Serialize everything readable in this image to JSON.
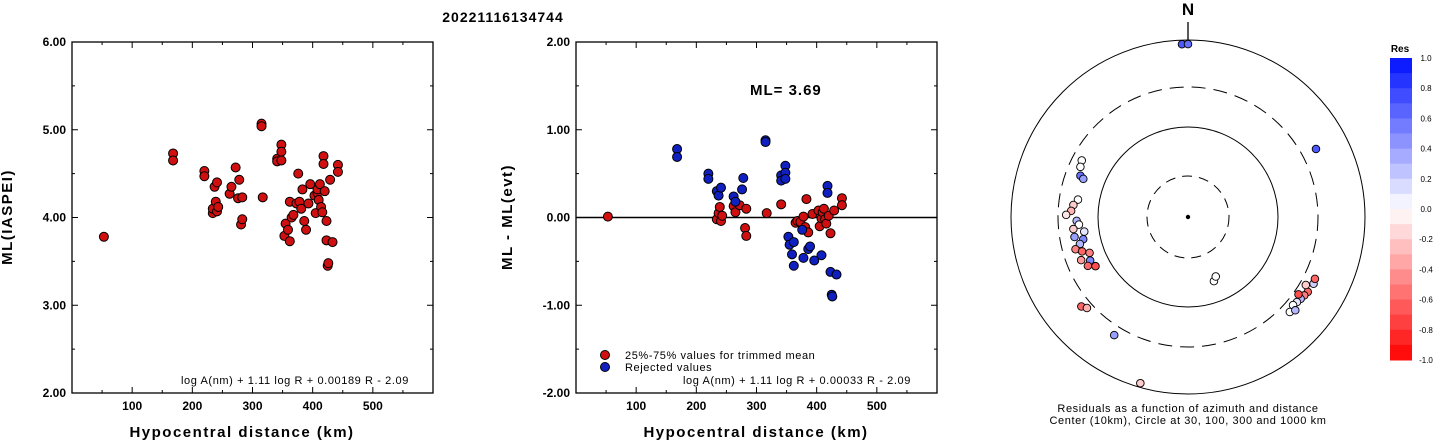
{
  "event_id": "20221116134744",
  "chart_data": [
    {
      "type": "scatter",
      "xlabel": "Hypocentral distance (km)",
      "ylabel": "ML(IASPEI)",
      "xlim": [
        0,
        600
      ],
      "ylim": [
        2.0,
        6.0
      ],
      "xticks": [
        "100",
        "200",
        "300",
        "400",
        "500"
      ],
      "yticks": [
        "2.00",
        "3.00",
        "4.00",
        "5.00",
        "6.00"
      ],
      "formula": "log A(nm) + 1.11 log R + 0.00189 R - 2.09",
      "marker_color": "#d01010",
      "points": [
        [
          53,
          3.78
        ],
        [
          168,
          4.73
        ],
        [
          168,
          4.65
        ],
        [
          220,
          4.53
        ],
        [
          220,
          4.47
        ],
        [
          234,
          4.05
        ],
        [
          234,
          4.1
        ],
        [
          237,
          4.35
        ],
        [
          239,
          4.18
        ],
        [
          241,
          4.07
        ],
        [
          241,
          4.4
        ],
        [
          243,
          4.12
        ],
        [
          262,
          4.27
        ],
        [
          265,
          4.35
        ],
        [
          272,
          4.57
        ],
        [
          276,
          4.22
        ],
        [
          278,
          4.43
        ],
        [
          281,
          3.92
        ],
        [
          283,
          3.98
        ],
        [
          283,
          4.23
        ],
        [
          315,
          5.07
        ],
        [
          315,
          5.04
        ],
        [
          317,
          4.23
        ],
        [
          341,
          4.67
        ],
        [
          341,
          4.64
        ],
        [
          348,
          4.83
        ],
        [
          348,
          4.75
        ],
        [
          348,
          4.65
        ],
        [
          353,
          3.79
        ],
        [
          355,
          3.93
        ],
        [
          359,
          3.86
        ],
        [
          362,
          4.18
        ],
        [
          362,
          3.73
        ],
        [
          365,
          4.0
        ],
        [
          368,
          4.03
        ],
        [
          373,
          4.16
        ],
        [
          376,
          4.5
        ],
        [
          378,
          4.18
        ],
        [
          381,
          4.1
        ],
        [
          383,
          4.32
        ],
        [
          386,
          3.96
        ],
        [
          389,
          3.86
        ],
        [
          393,
          4.16
        ],
        [
          396,
          4.38
        ],
        [
          403,
          4.25
        ],
        [
          405,
          4.05
        ],
        [
          408,
          4.28
        ],
        [
          408,
          4.32
        ],
        [
          410,
          4.2
        ],
        [
          412,
          4.38
        ],
        [
          414,
          4.12
        ],
        [
          416,
          4.06
        ],
        [
          418,
          4.7
        ],
        [
          418,
          4.61
        ],
        [
          420,
          4.3
        ],
        [
          423,
          3.96
        ],
        [
          423,
          3.74
        ],
        [
          425,
          3.45
        ],
        [
          426,
          3.48
        ],
        [
          429,
          4.43
        ],
        [
          433,
          3.72
        ],
        [
          442,
          4.6
        ],
        [
          442,
          4.52
        ]
      ]
    },
    {
      "type": "scatter",
      "xlabel": "Hypocentral distance (km)",
      "ylabel": "ML - ML(evt)",
      "xlim": [
        0,
        600
      ],
      "ylim": [
        -2.0,
        2.0
      ],
      "xticks": [
        "100",
        "200",
        "300",
        "400",
        "500"
      ],
      "yticks": [
        "-2.00",
        "-1.00",
        "0.00",
        "1.00",
        "2.00"
      ],
      "annotation": "ML= 3.69",
      "formula": "log A(nm) + 1.11 log R + 0.00033 R - 2.09",
      "zero_line": true,
      "series": [
        {
          "name": "25%-75% values for trimmed mean",
          "color": "#d01010",
          "points": [
            [
              53,
              0.01
            ],
            [
              234,
              -0.02
            ],
            [
              237,
              0.05
            ],
            [
              239,
              0.12
            ],
            [
              241,
              -0.04
            ],
            [
              243,
              0.02
            ],
            [
              262,
              0.13
            ],
            [
              265,
              0.06
            ],
            [
              272,
              0.14
            ],
            [
              281,
              -0.12
            ],
            [
              283,
              -0.21
            ],
            [
              283,
              0.1
            ],
            [
              317,
              0.05
            ],
            [
              341,
              0.15
            ],
            [
              365,
              -0.06
            ],
            [
              368,
              -0.04
            ],
            [
              373,
              -0.05
            ],
            [
              378,
              0.01
            ],
            [
              381,
              -0.11
            ],
            [
              383,
              0.21
            ],
            [
              386,
              -0.17
            ],
            [
              393,
              0.04
            ],
            [
              403,
              0.08
            ],
            [
              405,
              -0.1
            ],
            [
              408,
              -0.01
            ],
            [
              410,
              0.06
            ],
            [
              412,
              0.1
            ],
            [
              414,
              -0.02
            ],
            [
              416,
              -0.07
            ],
            [
              420,
              0.02
            ],
            [
              423,
              -0.18
            ],
            [
              429,
              0.08
            ],
            [
              442,
              0.22
            ],
            [
              442,
              0.14
            ]
          ]
        },
        {
          "name": "Rejected values",
          "color": "#1020c0",
          "points": [
            [
              168,
              0.78
            ],
            [
              168,
              0.69
            ],
            [
              220,
              0.5
            ],
            [
              220,
              0.44
            ],
            [
              234,
              0.3
            ],
            [
              237,
              0.25
            ],
            [
              241,
              0.34
            ],
            [
              262,
              0.24
            ],
            [
              265,
              0.18
            ],
            [
              276,
              0.32
            ],
            [
              278,
              0.45
            ],
            [
              315,
              0.88
            ],
            [
              315,
              0.86
            ],
            [
              341,
              0.48
            ],
            [
              341,
              0.42
            ],
            [
              348,
              0.59
            ],
            [
              348,
              0.51
            ],
            [
              348,
              0.44
            ],
            [
              353,
              -0.22
            ],
            [
              355,
              -0.31
            ],
            [
              359,
              -0.42
            ],
            [
              362,
              -0.28
            ],
            [
              362,
              -0.55
            ],
            [
              376,
              -0.14
            ],
            [
              378,
              -0.46
            ],
            [
              386,
              -0.36
            ],
            [
              389,
              -0.33
            ],
            [
              396,
              -0.49
            ],
            [
              408,
              -0.43
            ],
            [
              418,
              0.36
            ],
            [
              418,
              0.28
            ],
            [
              423,
              -0.62
            ],
            [
              425,
              -0.88
            ],
            [
              426,
              -0.9
            ],
            [
              433,
              -0.65
            ]
          ]
        }
      ]
    },
    {
      "type": "scatter",
      "subtype": "polar residual plot",
      "north_label": "N",
      "caption_line1": "Residuals as a function of azimuth and distance",
      "caption_line2": "Center (10km), Circle at 30, 100, 300 and 1000 km",
      "colorbar": {
        "title": "Res",
        "ticks": [
          "1.0",
          "0.8",
          "0.6",
          "0.4",
          "0.2",
          "0.0",
          "-0.2",
          "-0.4",
          "-0.6",
          "-0.8",
          "-1.0"
        ],
        "top_color": "#0010ff",
        "mid_color": "#ffffff",
        "bottom_color": "#ff0000"
      },
      "stations": [
        {
          "az": 358,
          "dist": 900,
          "res": 0.7
        },
        {
          "az": 0,
          "dist": 900,
          "res": 0.6
        },
        {
          "az": 62,
          "dist": 440,
          "res": 0.7
        },
        {
          "az": 298,
          "dist": 230,
          "res": 0.0
        },
        {
          "az": 295,
          "dist": 220,
          "res": 0.0
        },
        {
          "az": 291,
          "dist": 200,
          "res": 0.6
        },
        {
          "az": 290,
          "dist": 180,
          "res": 0.4
        },
        {
          "az": 279,
          "dist": 180,
          "res": 0.0
        },
        {
          "az": 276,
          "dist": 200,
          "res": -0.2
        },
        {
          "az": 273,
          "dist": 210,
          "res": -0.3
        },
        {
          "az": 271,
          "dist": 240,
          "res": -0.1
        },
        {
          "az": 268,
          "dist": 180,
          "res": 0.3
        },
        {
          "az": 266,
          "dist": 170,
          "res": 0.0
        },
        {
          "az": 264,
          "dist": 200,
          "res": -0.2
        },
        {
          "az": 262,
          "dist": 150,
          "res": 0.1
        },
        {
          "az": 260,
          "dist": 200,
          "res": 0.4
        },
        {
          "az": 258,
          "dist": 160,
          "res": 0.5
        },
        {
          "az": 256,
          "dist": 180,
          "res": 0.3
        },
        {
          "az": 254,
          "dist": 210,
          "res": -0.5
        },
        {
          "az": 252,
          "dist": 180,
          "res": -0.6
        },
        {
          "az": 250,
          "dist": 150,
          "res": -0.5
        },
        {
          "az": 248,
          "dist": 200,
          "res": -0.4
        },
        {
          "az": 246,
          "dist": 160,
          "res": 0.5
        },
        {
          "az": 244,
          "dist": 180,
          "res": -0.6
        },
        {
          "az": 242,
          "dist": 150,
          "res": -0.7
        },
        {
          "az": 230,
          "dist": 380,
          "res": -0.6
        },
        {
          "az": 228,
          "dist": 350,
          "res": -0.3
        },
        {
          "az": 212,
          "dist": 380,
          "res": 0.4
        },
        {
          "az": 196,
          "dist": 900,
          "res": -0.2
        },
        {
          "az": 158,
          "dist": 60,
          "res": 0.0
        },
        {
          "az": 155,
          "dist": 55,
          "res": 0.0
        },
        {
          "az": 122,
          "dist": 400,
          "res": -0.6
        },
        {
          "az": 124,
          "dist": 390,
          "res": -0.5
        },
        {
          "az": 126,
          "dist": 380,
          "res": 0.3
        },
        {
          "az": 128,
          "dist": 370,
          "res": 0.1
        },
        {
          "az": 130,
          "dist": 360,
          "res": 0.0
        },
        {
          "az": 125,
          "dist": 340,
          "res": -0.7
        },
        {
          "az": 120,
          "dist": 350,
          "res": -0.2
        },
        {
          "az": 133,
          "dist": 380,
          "res": 0.0
        },
        {
          "az": 131,
          "dist": 410,
          "res": 0.3
        },
        {
          "az": 118,
          "dist": 410,
          "res": 0.2
        },
        {
          "az": 116,
          "dist": 400,
          "res": -0.6
        }
      ]
    }
  ]
}
